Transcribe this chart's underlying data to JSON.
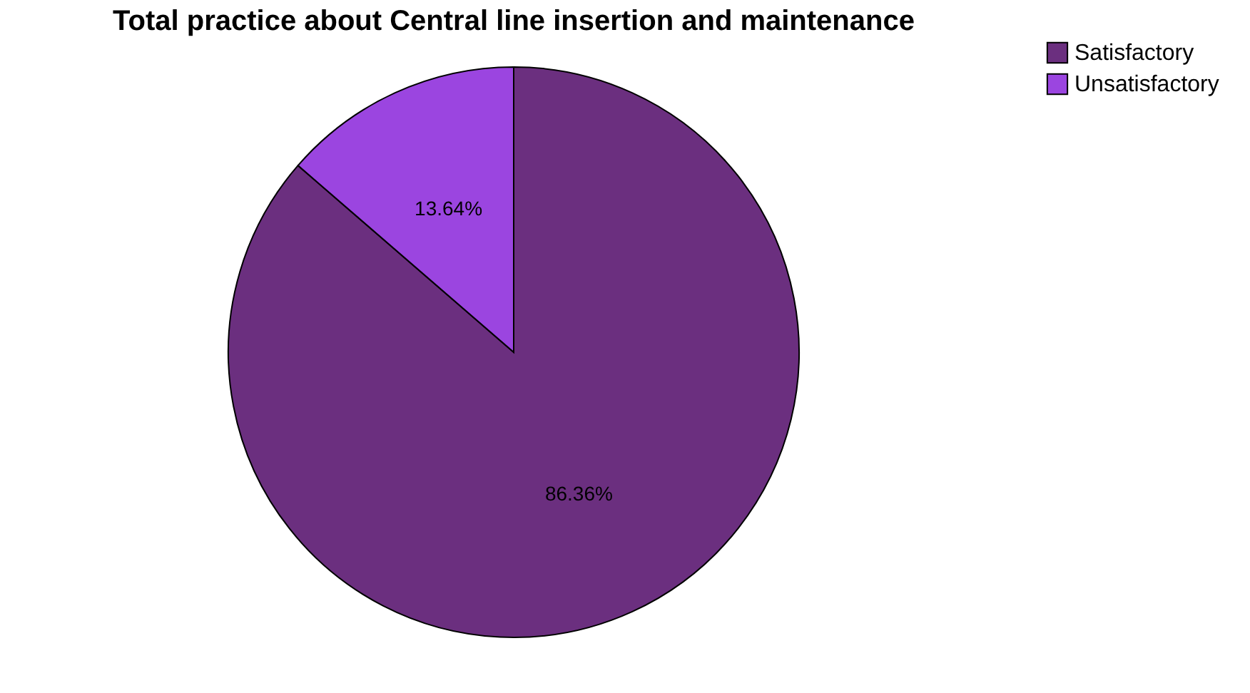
{
  "chart_data": {
    "type": "pie",
    "title": "Total practice about Central line insertion and maintenance",
    "categories": [
      "Satisfactory",
      "Unsatisfactory"
    ],
    "values": [
      86.36,
      13.64
    ],
    "colors": [
      "#6b2f7f",
      "#9b45e0"
    ],
    "value_labels": [
      "86.36%",
      "13.64%"
    ],
    "legend": "right"
  }
}
